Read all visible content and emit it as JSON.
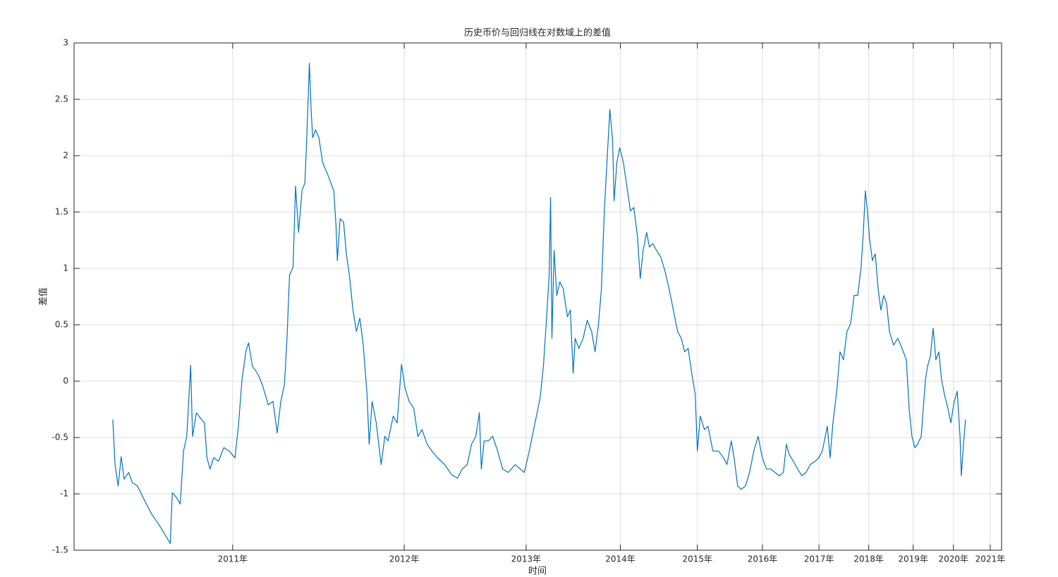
{
  "chart_data": {
    "type": "line",
    "title": "历史币价与回归线在对数域上的差值",
    "xlabel": "时间",
    "ylabel": "差值",
    "color": "#0072bd",
    "grid": true,
    "xscale": "log",
    "xlim": [
      500,
      4500
    ],
    "ylim": [
      -1.5,
      3
    ],
    "xticks": [
      {
        "value": 728,
        "label": "2011年"
      },
      {
        "value": 1093,
        "label": "2012年"
      },
      {
        "value": 1459,
        "label": "2013年"
      },
      {
        "value": 1824,
        "label": "2014年"
      },
      {
        "value": 2189,
        "label": "2015年"
      },
      {
        "value": 2554,
        "label": "2016年"
      },
      {
        "value": 2920,
        "label": "2017年"
      },
      {
        "value": 3285,
        "label": "2018年"
      },
      {
        "value": 3650,
        "label": "2019年"
      },
      {
        "value": 4015,
        "label": "2020年"
      },
      {
        "value": 4381,
        "label": "2021年"
      }
    ],
    "yticks": [
      -1.5,
      -1,
      -0.5,
      0,
      0.5,
      1,
      1.5,
      2,
      2.5,
      3
    ],
    "x": [
      548,
      551,
      555,
      559,
      563,
      569,
      574,
      581,
      591,
      601,
      611,
      621,
      628,
      631,
      637,
      643,
      648,
      653,
      659,
      662,
      668,
      676,
      681,
      685,
      690,
      696,
      704,
      713,
      722,
      732,
      738,
      744,
      751,
      756,
      763,
      772,
      781,
      792,
      801,
      809,
      816,
      823,
      828,
      833,
      840,
      845,
      851,
      858,
      864,
      868,
      873,
      877,
      880,
      886,
      893,
      901,
      913,
      925,
      930,
      933,
      939,
      947,
      953,
      960,
      968,
      976,
      984,
      992,
      1001,
      1006,
      1013,
      1023,
      1035,
      1044,
      1052,
      1065,
      1075,
      1086,
      1095,
      1106,
      1118,
      1129,
      1140,
      1154,
      1167,
      1183,
      1203,
      1223,
      1240,
      1254,
      1269,
      1282,
      1295,
      1306,
      1312,
      1321,
      1334,
      1348,
      1364,
      1380,
      1398,
      1422,
      1439,
      1453,
      1470,
      1490,
      1508,
      1520,
      1530,
      1541,
      1546,
      1551,
      1559,
      1569,
      1580,
      1593,
      1609,
      1620,
      1631,
      1639,
      1653,
      1670,
      1686,
      1704,
      1718,
      1732,
      1744,
      1756,
      1767,
      1779,
      1791,
      1797,
      1809,
      1821,
      1837,
      1852,
      1868,
      1883,
      1899,
      1912,
      1925,
      1941,
      1954,
      1970,
      1987,
      2007,
      2027,
      2047,
      2068,
      2089,
      2107,
      2124,
      2142,
      2160,
      2178,
      2189,
      2204,
      2226,
      2245,
      2271,
      2302,
      2329,
      2348,
      2372,
      2388,
      2408,
      2428,
      2453,
      2477,
      2502,
      2528,
      2553,
      2579,
      2605,
      2631,
      2658,
      2684,
      2703,
      2721,
      2748,
      2776,
      2804,
      2832,
      2860,
      2894,
      2919,
      2943,
      2978,
      2998,
      3018,
      3048,
      3069,
      3094,
      3120,
      3147,
      3173,
      3200,
      3226,
      3243,
      3259,
      3275,
      3292,
      3314,
      3336,
      3359,
      3381,
      3404,
      3427,
      3450,
      3484,
      3520,
      3555,
      3591,
      3615,
      3639,
      3664,
      3688,
      3720,
      3738,
      3757,
      3776,
      3801,
      3827,
      3852,
      3878,
      3904,
      3931,
      3963,
      3990,
      4023,
      4051,
      4078,
      4091,
      4112,
      4132
    ],
    "values": [
      -0.34,
      -0.74,
      -0.93,
      -0.67,
      -0.87,
      -0.81,
      -0.9,
      -0.93,
      -1.06,
      -1.18,
      -1.27,
      -1.37,
      -1.44,
      -0.99,
      -1.03,
      -1.09,
      -0.62,
      -0.49,
      0.14,
      -0.49,
      -0.28,
      -0.34,
      -0.37,
      -0.68,
      -0.78,
      -0.68,
      -0.71,
      -0.59,
      -0.62,
      -0.68,
      -0.4,
      0,
      0.26,
      0.34,
      0.13,
      0.07,
      -0.03,
      -0.21,
      -0.18,
      -0.46,
      -0.18,
      -0.03,
      0.38,
      0.94,
      1.01,
      1.73,
      1.32,
      1.69,
      1.76,
      2.19,
      2.82,
      2.38,
      2.16,
      2.23,
      2.16,
      1.94,
      1.82,
      1.69,
      1.38,
      1.07,
      1.44,
      1.41,
      1.13,
      0.94,
      0.63,
      0.44,
      0.56,
      0.32,
      -0.12,
      -0.56,
      -0.18,
      -0.37,
      -0.74,
      -0.49,
      -0.53,
      -0.31,
      -0.37,
      0.15,
      -0.06,
      -0.18,
      -0.24,
      -0.49,
      -0.43,
      -0.56,
      -0.62,
      -0.68,
      -0.74,
      -0.83,
      -0.86,
      -0.78,
      -0.74,
      -0.56,
      -0.49,
      -0.28,
      -0.78,
      -0.53,
      -0.53,
      -0.49,
      -0.62,
      -0.78,
      -0.81,
      -0.74,
      -0.78,
      -0.81,
      -0.62,
      -0.37,
      -0.15,
      0.13,
      0.51,
      0.94,
      1.63,
      0.38,
      1.16,
      0.76,
      0.88,
      0.82,
      0.57,
      0.63,
      0.07,
      0.38,
      0.29,
      0.38,
      0.54,
      0.44,
      0.26,
      0.51,
      0.82,
      1.51,
      1.94,
      2.41,
      2.13,
      1.6,
      1.94,
      2.07,
      1.94,
      1.73,
      1.51,
      1.54,
      1.29,
      0.91,
      1.16,
      1.32,
      1.19,
      1.22,
      1.16,
      1.1,
      0.98,
      0.82,
      0.63,
      0.44,
      0.38,
      0.26,
      0.29,
      0.07,
      -0.12,
      -0.62,
      -0.31,
      -0.43,
      -0.4,
      -0.62,
      -0.62,
      -0.68,
      -0.74,
      -0.53,
      -0.68,
      -0.93,
      -0.96,
      -0.93,
      -0.81,
      -0.62,
      -0.49,
      -0.68,
      -0.78,
      -0.78,
      -0.81,
      -0.84,
      -0.81,
      -0.56,
      -0.65,
      -0.71,
      -0.78,
      -0.84,
      -0.81,
      -0.74,
      -0.71,
      -0.68,
      -0.62,
      -0.4,
      -0.68,
      -0.37,
      -0.06,
      0.26,
      0.19,
      0.44,
      0.51,
      0.76,
      0.76,
      1.01,
      1.32,
      1.69,
      1.51,
      1.26,
      1.07,
      1.13,
      0.82,
      0.63,
      0.76,
      0.69,
      0.44,
      0.32,
      0.38,
      0.29,
      0.19,
      -0.24,
      -0.49,
      -0.59,
      -0.56,
      -0.49,
      -0.24,
      0.01,
      0.13,
      0.22,
      0.47,
      0.19,
      0.26,
      0.01,
      -0.12,
      -0.24,
      -0.37,
      -0.18,
      -0.09,
      -0.49,
      -0.84,
      -0.56,
      -0.34
    ]
  }
}
